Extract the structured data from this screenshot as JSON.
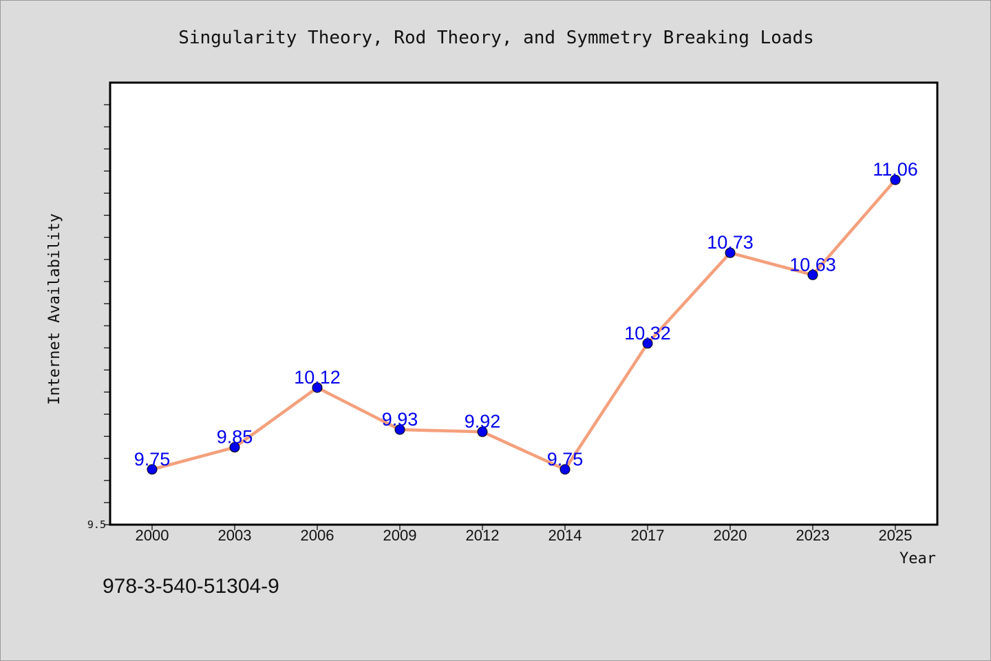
{
  "chart_data": {
    "type": "line",
    "title": "Singularity Theory, Rod Theory, and Symmetry Breaking Loads",
    "xlabel": "Year",
    "ylabel": "Internet Availability",
    "categories": [
      "2000",
      "2003",
      "2006",
      "2009",
      "2012",
      "2014",
      "2017",
      "2020",
      "2023",
      "2025"
    ],
    "values": [
      9.75,
      9.85,
      10.12,
      9.93,
      9.92,
      9.75,
      10.32,
      10.73,
      10.63,
      11.06
    ],
    "data_labels": [
      "9.75",
      "9.85",
      "10.12",
      "9.93",
      "9.92",
      "9.75",
      "10.32",
      "10.73",
      "10.63",
      "11.06"
    ],
    "ylim": [
      9.5,
      11.5
    ],
    "ytick_labels": [
      "9.5"
    ],
    "grid": false,
    "colors": {
      "line": "#f4a07c",
      "marker": "#0000ee",
      "label": "#0000ee"
    }
  },
  "footer": {
    "code": "978-3-540-51304-9"
  }
}
